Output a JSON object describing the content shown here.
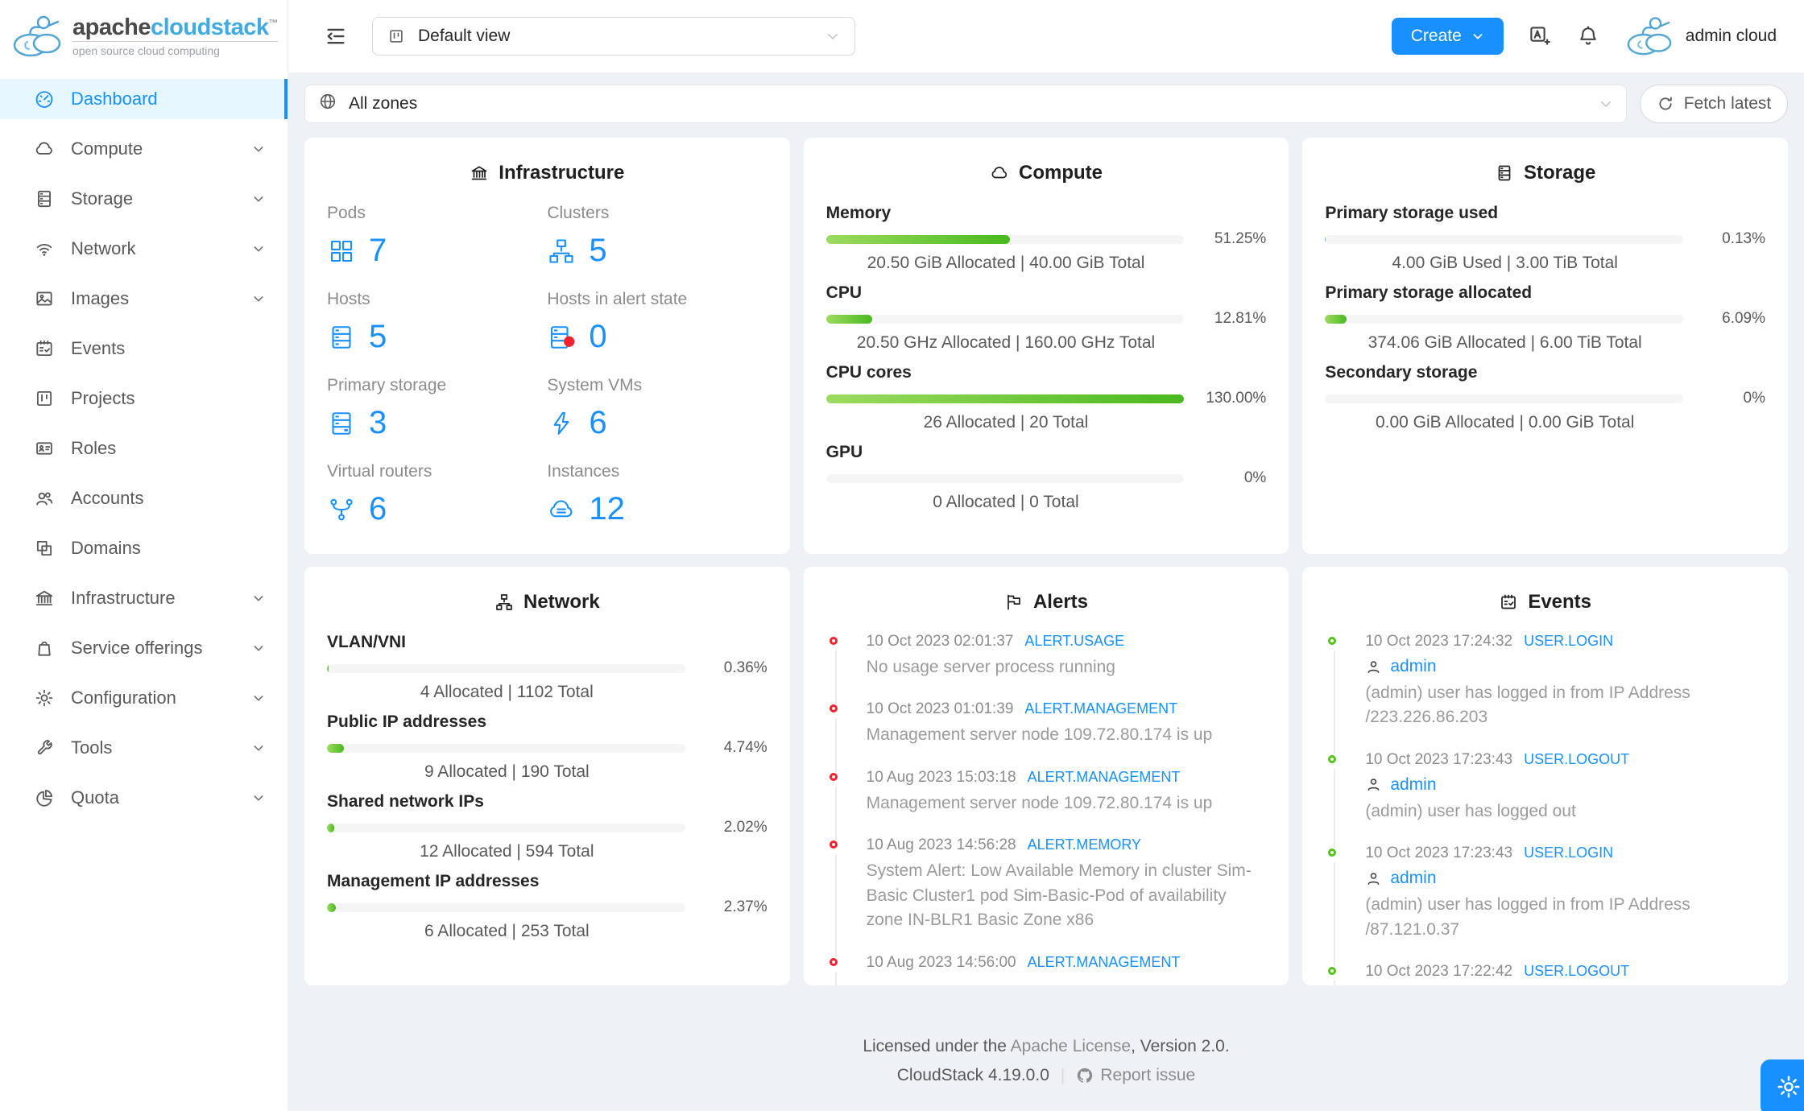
{
  "brand": {
    "name_primary": "apache",
    "name_accent": "cloudstack",
    "trademark": "™",
    "subtitle": "open source cloud computing"
  },
  "topbar": {
    "view_selector": "Default view",
    "create_label": "Create",
    "username": "admin cloud"
  },
  "zonebar": {
    "zone_selector": "All zones",
    "fetch_label": "Fetch latest"
  },
  "sidebar": {
    "items": [
      {
        "label": "Dashboard"
      },
      {
        "label": "Compute"
      },
      {
        "label": "Storage"
      },
      {
        "label": "Network"
      },
      {
        "label": "Images"
      },
      {
        "label": "Events"
      },
      {
        "label": "Projects"
      },
      {
        "label": "Roles"
      },
      {
        "label": "Accounts"
      },
      {
        "label": "Domains"
      },
      {
        "label": "Infrastructure"
      },
      {
        "label": "Service offerings"
      },
      {
        "label": "Configuration"
      },
      {
        "label": "Tools"
      },
      {
        "label": "Quota"
      }
    ]
  },
  "infrastructure_card": {
    "title": "Infrastructure",
    "stats": [
      {
        "label": "Pods",
        "value": "7"
      },
      {
        "label": "Clusters",
        "value": "5"
      },
      {
        "label": "Hosts",
        "value": "5"
      },
      {
        "label": "Hosts in alert state",
        "value": "0"
      },
      {
        "label": "Primary storage",
        "value": "3"
      },
      {
        "label": "System VMs",
        "value": "6"
      },
      {
        "label": "Virtual routers",
        "value": "6"
      },
      {
        "label": "Instances",
        "value": "12"
      }
    ]
  },
  "compute_card": {
    "title": "Compute",
    "metrics": [
      {
        "label": "Memory",
        "percent": 51.25,
        "percent_text": "51.25%",
        "detail": "20.50 GiB Allocated | 40.00 GiB Total"
      },
      {
        "label": "CPU",
        "percent": 12.81,
        "percent_text": "12.81%",
        "detail": "20.50 GHz Allocated | 160.00 GHz Total"
      },
      {
        "label": "CPU cores",
        "percent": 130,
        "percent_text": "130.00%",
        "detail": "26 Allocated | 20 Total"
      },
      {
        "label": "GPU",
        "percent": 0,
        "percent_text": "0%",
        "detail": "0 Allocated | 0 Total"
      }
    ]
  },
  "storage_card": {
    "title": "Storage",
    "metrics": [
      {
        "label": "Primary storage used",
        "percent": 0.13,
        "percent_text": "0.13%",
        "detail": "4.00 GiB Used | 3.00 TiB Total"
      },
      {
        "label": "Primary storage allocated",
        "percent": 6.09,
        "percent_text": "6.09%",
        "detail": "374.06 GiB Allocated | 6.00 TiB Total"
      },
      {
        "label": "Secondary storage",
        "percent": 0,
        "percent_text": "0%",
        "detail": "0.00 GiB Allocated | 0.00 GiB Total"
      }
    ]
  },
  "network_card": {
    "title": "Network",
    "metrics": [
      {
        "label": "VLAN/VNI",
        "percent": 0.36,
        "percent_text": "0.36%",
        "detail": "4 Allocated | 1102 Total"
      },
      {
        "label": "Public IP addresses",
        "percent": 4.74,
        "percent_text": "4.74%",
        "detail": "9 Allocated | 190 Total"
      },
      {
        "label": "Shared network IPs",
        "percent": 2.02,
        "percent_text": "2.02%",
        "detail": "12 Allocated | 594 Total"
      },
      {
        "label": "Management IP addresses",
        "percent": 2.37,
        "percent_text": "2.37%",
        "detail": "6 Allocated | 253 Total"
      }
    ]
  },
  "alerts_card": {
    "title": "Alerts",
    "items": [
      {
        "date": "10 Oct 2023 02:01:37",
        "type": "ALERT.USAGE",
        "description": "No usage server process running"
      },
      {
        "date": "10 Oct 2023 01:01:39",
        "type": "ALERT.MANAGEMENT",
        "description": "Management server node 109.72.80.174 is up"
      },
      {
        "date": "10 Aug 2023 15:03:18",
        "type": "ALERT.MANAGEMENT",
        "description": "Management server node 109.72.80.174 is up"
      },
      {
        "date": "10 Aug 2023 14:56:28",
        "type": "ALERT.MEMORY",
        "description": "System Alert: Low Available Memory in cluster Sim-Basic Cluster1 pod Sim-Basic-Pod of availability zone IN-BLR1 Basic Zone x86"
      },
      {
        "date": "10 Aug 2023 14:56:00",
        "type": "ALERT.MANAGEMENT",
        "description": ""
      }
    ]
  },
  "events_card": {
    "title": "Events",
    "items": [
      {
        "date": "10 Oct 2023 17:24:32",
        "type": "USER.LOGIN",
        "user": "admin",
        "description": "(admin) user has logged in from IP Address /223.226.86.203"
      },
      {
        "date": "10 Oct 2023 17:23:43",
        "type": "USER.LOGOUT",
        "user": "admin",
        "description": "(admin) user has logged out"
      },
      {
        "date": "10 Oct 2023 17:23:43",
        "type": "USER.LOGIN",
        "user": "admin",
        "description": "(admin) user has logged in from IP Address /87.121.0.37"
      },
      {
        "date": "10 Oct 2023 17:22:42",
        "type": "USER.LOGOUT",
        "user": "",
        "description": ""
      }
    ]
  },
  "footer": {
    "license_prefix": "Licensed under the ",
    "license_link": "Apache License",
    "license_suffix": ", Version 2.0.",
    "version": "CloudStack 4.19.0.0",
    "divider": "|",
    "report_label": "Report issue"
  },
  "colors": {
    "primary": "#1890ff",
    "progress_green_start": "#9ddb60",
    "progress_green_end": "#49b91f",
    "alert_red": "#f5222d",
    "event_green": "#52c41a",
    "active_item_bg": "#e6f7ff"
  }
}
